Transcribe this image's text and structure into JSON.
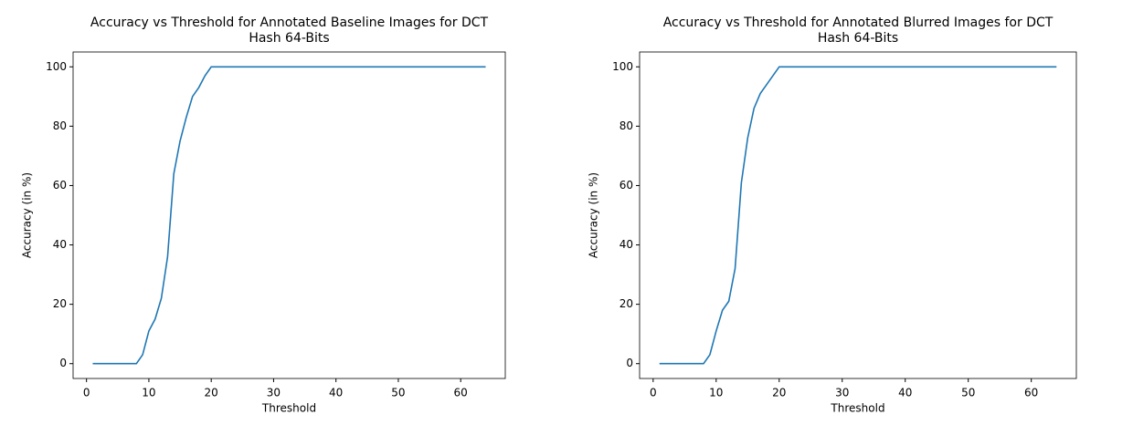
{
  "chart_data": [
    {
      "type": "line",
      "title": [
        "Accuracy vs Threshold for Annotated Baseline Images for DCT",
        "Hash 64-Bits"
      ],
      "xlabel": "Threshold",
      "ylabel": "Accuracy (in %)",
      "x": [
        1,
        2,
        3,
        4,
        5,
        6,
        7,
        8,
        9,
        10,
        11,
        12,
        13,
        14,
        15,
        16,
        17,
        18,
        19,
        20,
        21,
        22,
        23,
        24,
        25,
        26,
        27,
        28,
        29,
        30,
        31,
        32,
        33,
        34,
        35,
        36,
        37,
        38,
        39,
        40,
        41,
        42,
        43,
        44,
        45,
        46,
        47,
        48,
        49,
        50,
        51,
        52,
        53,
        54,
        55,
        56,
        57,
        58,
        59,
        60,
        61,
        62,
        63,
        64
      ],
      "series": [
        {
          "color": "#1f77b4",
          "values": [
            0,
            0,
            0,
            0,
            0,
            0,
            0,
            0,
            3,
            11,
            15,
            22,
            36,
            64,
            75,
            83,
            90,
            93,
            97,
            100,
            100,
            100,
            100,
            100,
            100,
            100,
            100,
            100,
            100,
            100,
            100,
            100,
            100,
            100,
            100,
            100,
            100,
            100,
            100,
            100,
            100,
            100,
            100,
            100,
            100,
            100,
            100,
            100,
            100,
            100,
            100,
            100,
            100,
            100,
            100,
            100,
            100,
            100,
            100,
            100,
            100,
            100,
            100,
            100
          ]
        }
      ],
      "xlim": [
        -2.15,
        67.15
      ],
      "ylim": [
        -5,
        105
      ],
      "xticks": [
        0,
        10,
        20,
        30,
        40,
        50,
        60
      ],
      "yticks": [
        0,
        20,
        40,
        60,
        80,
        100
      ]
    },
    {
      "type": "line",
      "title": [
        "Accuracy vs Threshold for Annotated Blurred Images for DCT",
        "Hash 64-Bits"
      ],
      "xlabel": "Threshold",
      "ylabel": "Accuracy (in %)",
      "x": [
        1,
        2,
        3,
        4,
        5,
        6,
        7,
        8,
        9,
        10,
        11,
        12,
        13,
        14,
        15,
        16,
        17,
        18,
        19,
        20,
        21,
        22,
        23,
        24,
        25,
        26,
        27,
        28,
        29,
        30,
        31,
        32,
        33,
        34,
        35,
        36,
        37,
        38,
        39,
        40,
        41,
        42,
        43,
        44,
        45,
        46,
        47,
        48,
        49,
        50,
        51,
        52,
        53,
        54,
        55,
        56,
        57,
        58,
        59,
        60,
        61,
        62,
        63,
        64
      ],
      "series": [
        {
          "color": "#1f77b4",
          "values": [
            0,
            0,
            0,
            0,
            0,
            0,
            0,
            0,
            3,
            11,
            18,
            21,
            32,
            61,
            76,
            86,
            91,
            94,
            97,
            100,
            100,
            100,
            100,
            100,
            100,
            100,
            100,
            100,
            100,
            100,
            100,
            100,
            100,
            100,
            100,
            100,
            100,
            100,
            100,
            100,
            100,
            100,
            100,
            100,
            100,
            100,
            100,
            100,
            100,
            100,
            100,
            100,
            100,
            100,
            100,
            100,
            100,
            100,
            100,
            100,
            100,
            100,
            100,
            100
          ]
        }
      ],
      "xlim": [
        -2.15,
        67.15
      ],
      "ylim": [
        -5,
        105
      ],
      "xticks": [
        0,
        10,
        20,
        30,
        40,
        50,
        60
      ],
      "yticks": [
        0,
        20,
        40,
        60,
        80,
        100
      ]
    }
  ]
}
